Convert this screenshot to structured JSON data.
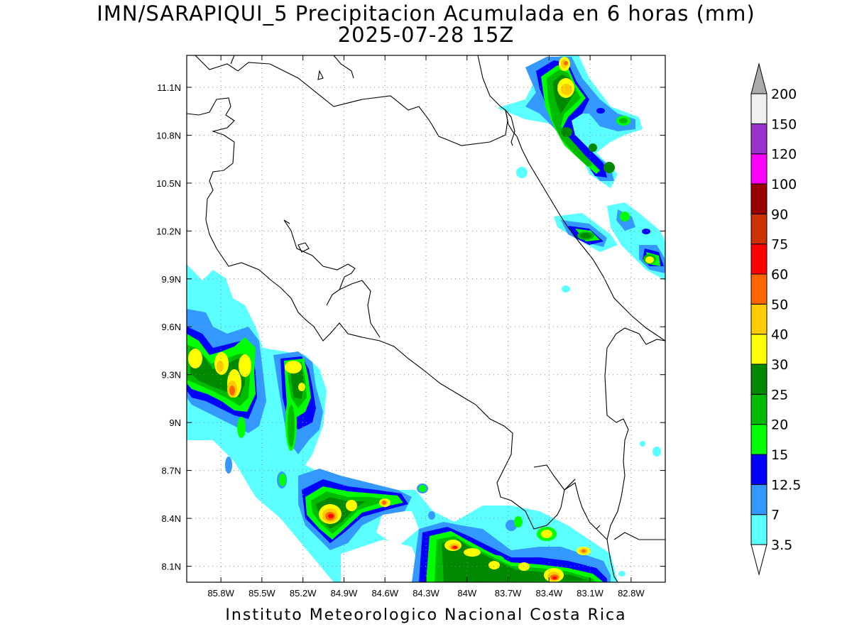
{
  "title": {
    "line1": "IMN/SARAPIQUI_5 Precipitacion Acumulada en 6 horas (mm)",
    "line2": "2025-07-28 15Z"
  },
  "credit": "Instituto Meteorologico Nacional Costa Rica",
  "map": {
    "lon_range": [
      -86.05,
      -82.55
    ],
    "lat_range": [
      8.0,
      11.3
    ],
    "grid": "dotted",
    "lon_ticks": [
      {
        "value": -85.8,
        "label": "85.8W"
      },
      {
        "value": -85.5,
        "label": "85.5W"
      },
      {
        "value": -85.2,
        "label": "85.2W"
      },
      {
        "value": -84.9,
        "label": "84.9W"
      },
      {
        "value": -84.6,
        "label": "84.6W"
      },
      {
        "value": -84.3,
        "label": "84.3W"
      },
      {
        "value": -84.0,
        "label": "84W"
      },
      {
        "value": -83.7,
        "label": "83.7W"
      },
      {
        "value": -83.4,
        "label": "83.4W"
      },
      {
        "value": -83.1,
        "label": "83.1W"
      },
      {
        "value": -82.8,
        "label": "82.8W"
      }
    ],
    "lat_ticks": [
      {
        "value": 11.1,
        "label": "11.1N"
      },
      {
        "value": 10.8,
        "label": "10.8N"
      },
      {
        "value": 10.5,
        "label": "10.5N"
      },
      {
        "value": 10.2,
        "label": "10.2N"
      },
      {
        "value": 9.9,
        "label": "9.9N"
      },
      {
        "value": 9.6,
        "label": "9.6N"
      },
      {
        "value": 9.3,
        "label": "9.3N"
      },
      {
        "value": 9.0,
        "label": "9N"
      },
      {
        "value": 8.7,
        "label": "8.7N"
      },
      {
        "value": 8.4,
        "label": "8.4N"
      },
      {
        "value": 8.1,
        "label": "8.1N"
      }
    ]
  },
  "colorbar": {
    "levels": [
      {
        "label": "3.5",
        "color": "#5cffff"
      },
      {
        "label": "7",
        "color": "#3399ff"
      },
      {
        "label": "12.5",
        "color": "#0000ff"
      },
      {
        "label": "15",
        "color": "#00ff00"
      },
      {
        "label": "20",
        "color": "#00bb00"
      },
      {
        "label": "25",
        "color": "#008800"
      },
      {
        "label": "30",
        "color": "#ffff00"
      },
      {
        "label": "40",
        "color": "#ffcc00"
      },
      {
        "label": "50",
        "color": "#ff6600"
      },
      {
        "label": "60",
        "color": "#ff0000"
      },
      {
        "label": "75",
        "color": "#cc3300"
      },
      {
        "label": "90",
        "color": "#990000"
      },
      {
        "label": "100",
        "color": "#ff00ff"
      },
      {
        "label": "120",
        "color": "#9933cc"
      },
      {
        "label": "150",
        "color": "#f0f0f0"
      },
      {
        "label": "200",
        "color": "#aaaaaa"
      }
    ]
  },
  "precip_cells": [
    {
      "lon": -85.88,
      "lat": 9.35,
      "max_mm": 40
    },
    {
      "lon": -85.7,
      "lat": 9.3,
      "max_mm": 40
    },
    {
      "lon": -85.6,
      "lat": 9.2,
      "max_mm": 50
    },
    {
      "lon": -85.47,
      "lat": 9.35,
      "max_mm": 40
    },
    {
      "lon": -85.52,
      "lat": 8.95,
      "max_mm": 20
    },
    {
      "lon": -85.12,
      "lat": 9.37,
      "max_mm": 40
    },
    {
      "lon": -85.05,
      "lat": 9.2,
      "max_mm": 25
    },
    {
      "lon": -85.15,
      "lat": 9.0,
      "max_mm": 20
    },
    {
      "lon": -84.95,
      "lat": 8.42,
      "max_mm": 60
    },
    {
      "lon": -84.55,
      "lat": 8.48,
      "max_mm": 50
    },
    {
      "lon": -84.0,
      "lat": 8.22,
      "max_mm": 60
    },
    {
      "lon": -83.4,
      "lat": 8.05,
      "max_mm": 60
    },
    {
      "lon": -83.2,
      "lat": 8.28,
      "max_mm": 40
    },
    {
      "lon": -83.08,
      "lat": 8.2,
      "max_mm": 50
    },
    {
      "lon": -83.3,
      "lat": 11.2,
      "max_mm": 50
    },
    {
      "lon": -83.27,
      "lat": 11.08,
      "max_mm": 40
    },
    {
      "lon": -83.02,
      "lat": 10.15,
      "max_mm": 25
    },
    {
      "lon": -82.65,
      "lat": 10.0,
      "max_mm": 40
    }
  ]
}
